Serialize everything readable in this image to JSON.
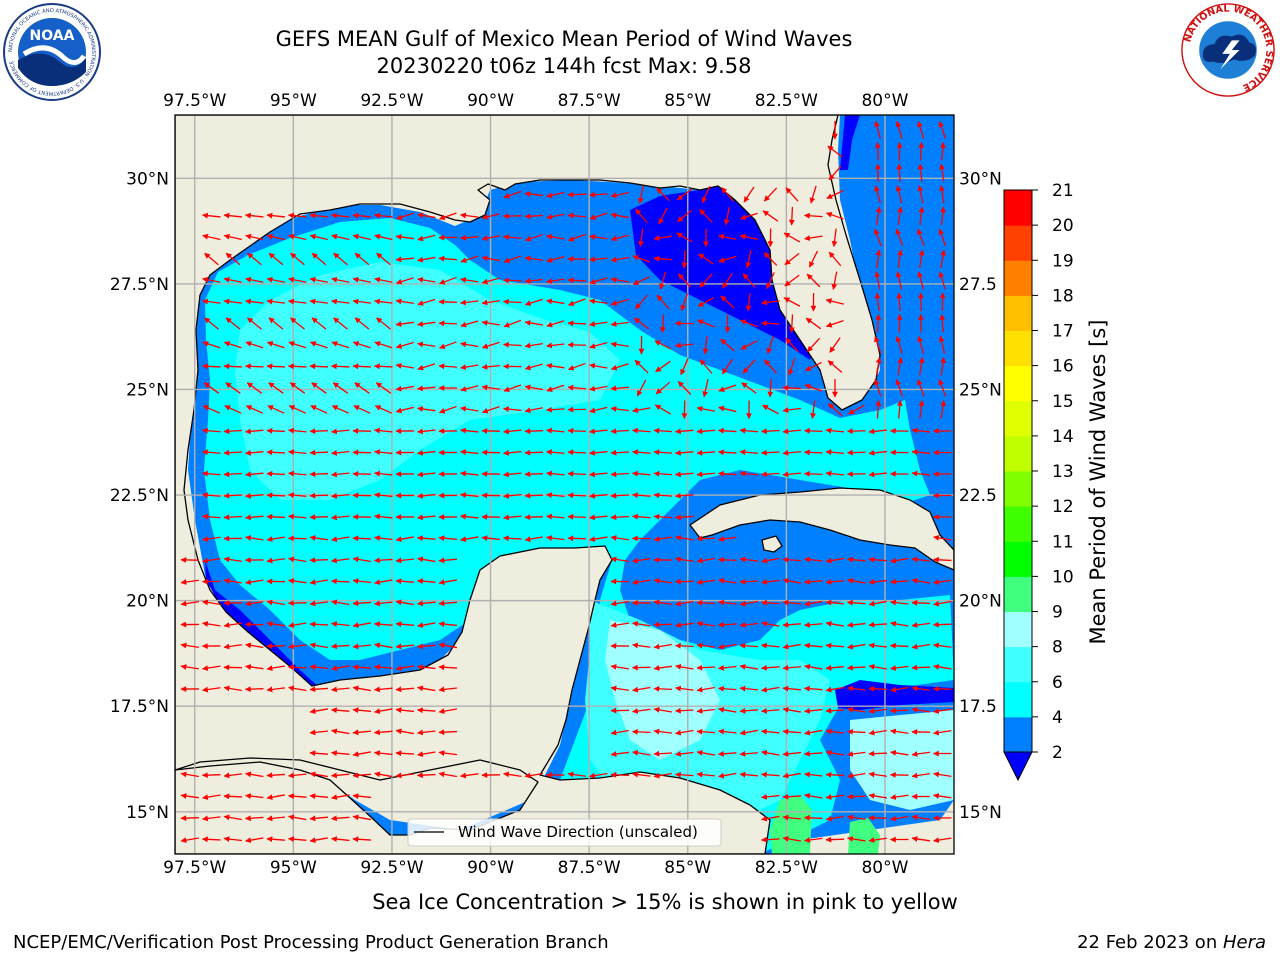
{
  "title": {
    "line1": "GEFS MEAN Gulf of Mexico Mean Period of Wind Waves",
    "line2": "20230220 t06z 144h fcst   Max: 9.58"
  },
  "axes": {
    "lon_labels": [
      "97.5°W",
      "95°W",
      "92.5°W",
      "90°W",
      "87.5°W",
      "85°W",
      "82.5°W",
      "80°W"
    ],
    "lon_values": [
      -97.5,
      -95,
      -92.5,
      -90,
      -87.5,
      -85,
      -82.5,
      -80
    ],
    "lat_labels_left": [
      "30°N",
      "27.5°N",
      "25°N",
      "22.5°N",
      "20°N",
      "17.5°N",
      "15°N"
    ],
    "lat_labels_right": [
      "30°N",
      "27.5",
      "25°N",
      "22.5",
      "20°N",
      "17.5",
      "15°N"
    ],
    "lat_values": [
      30,
      27.5,
      25,
      22.5,
      20,
      17.5,
      15
    ],
    "extent": {
      "lon_min": -98.0,
      "lon_max": -78.25,
      "lat_min": 14.0,
      "lat_max": 31.5
    },
    "grid": true
  },
  "legend": {
    "label": "Wind Wave Direction (unscaled)",
    "placement": "bottom-center"
  },
  "colorbar": {
    "label": "Mean Period of Wind Waves [s]",
    "ticks": [
      "2",
      "4",
      "6",
      "8",
      "9",
      "10",
      "11",
      "12",
      "13",
      "14",
      "15",
      "16",
      "17",
      "18",
      "19",
      "20",
      "21"
    ],
    "colors": [
      "#0080ff",
      "#00ffff",
      "#40ffff",
      "#a0ffff",
      "#40ff80",
      "#00ff00",
      "#40ff00",
      "#80ff00",
      "#c0ff00",
      "#e0ff00",
      "#ffff00",
      "#ffe000",
      "#ffc000",
      "#ff8000",
      "#ff4000",
      "#ff0000"
    ],
    "under_color": "#0000ff",
    "extend": "min"
  },
  "bottom_note": "Sea Ice Concentration > 15% is shown in pink to yellow",
  "footer": {
    "left": "NCEP/EMC/Verification Post Processing Product Generation Branch",
    "date": "22 Feb 2023 on ",
    "machine": "Hera"
  },
  "logos": {
    "left_name": "NOAA",
    "left_ring_text": "NATIONAL OCEANIC AND ATMOSPHERIC ADMINISTRATION · U.S. DEPARTMENT OF COMMERCE",
    "right_ring_text": "NATIONAL WEATHER SERVICE"
  },
  "colors": {
    "land": "#efedde",
    "arrow": "#ff0000",
    "grid": "#b0b0b0"
  }
}
